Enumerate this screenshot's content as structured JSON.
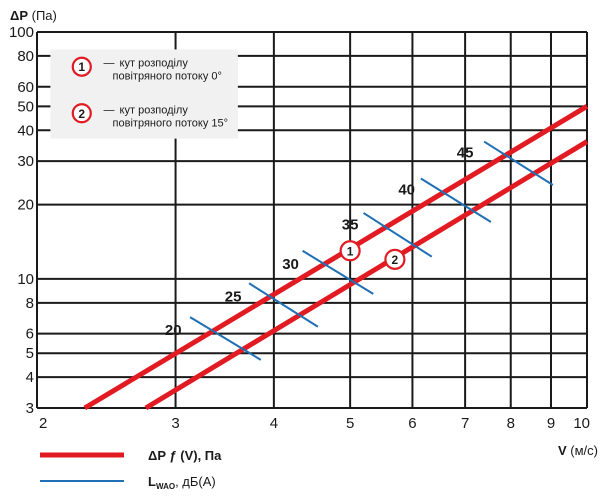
{
  "chart_data": {
    "type": "line",
    "xscale": "log",
    "yscale": "log",
    "xlabel_symbol": "V",
    "xlabel_unit": "(м/с)",
    "ylabel_symbol": "ΔP",
    "ylabel_unit": "(Па)",
    "xlim": [
      2,
      10
    ],
    "ylim": [
      3,
      100
    ],
    "x_ticks": [
      2,
      3,
      4,
      5,
      6,
      7,
      8,
      9,
      10
    ],
    "y_ticks": [
      3,
      4,
      5,
      6,
      8,
      10,
      20,
      30,
      40,
      50,
      60,
      80,
      100
    ],
    "grid": true,
    "series": [
      {
        "marker": "1",
        "x": [
          2.3,
          10
        ],
        "y": [
          3,
          50
        ],
        "marker_at": {
          "x": 5,
          "y": 13
        }
      },
      {
        "marker": "2",
        "x": [
          2.75,
          10
        ],
        "y": [
          3,
          36
        ],
        "marker_at": {
          "x": 5.7,
          "y": 12
        }
      }
    ],
    "iso_lines": [
      {
        "label": "20",
        "x1": 3.13,
        "y1": 7.0,
        "x2": 3.85,
        "y2": 4.7,
        "label_x": 2.98,
        "label_y": 6.2
      },
      {
        "label": "25",
        "x1": 3.72,
        "y1": 9.6,
        "x2": 4.55,
        "y2": 6.4,
        "label_x": 3.55,
        "label_y": 8.5
      },
      {
        "label": "30",
        "x1": 4.35,
        "y1": 13.0,
        "x2": 5.35,
        "y2": 8.7,
        "label_x": 4.2,
        "label_y": 11.5
      },
      {
        "label": "35",
        "x1": 5.2,
        "y1": 18.5,
        "x2": 6.35,
        "y2": 12.3,
        "label_x": 5.0,
        "label_y": 16.6
      },
      {
        "label": "40",
        "x1": 6.15,
        "y1": 25.5,
        "x2": 7.55,
        "y2": 17.0,
        "label_x": 5.9,
        "label_y": 23.0
      },
      {
        "label": "45",
        "x1": 7.4,
        "y1": 36.0,
        "x2": 9.05,
        "y2": 24.0,
        "label_x": 7.0,
        "label_y": 32.5
      }
    ],
    "annotations": [
      {
        "marker": "1",
        "dash": "—",
        "line1": "кут розподілу",
        "line2": "повітряного потоку 0°",
        "x": 2.43,
        "y": 71
      },
      {
        "marker": "2",
        "dash": "—",
        "line1": "кут розподілу",
        "line2": "повітряного потоку 15°",
        "x": 2.43,
        "y": 46
      }
    ],
    "legend": {
      "placement": "bottom-left",
      "items": [
        {
          "kind": "red-line",
          "label_main": "ΔP ƒ (V), Па"
        },
        {
          "kind": "blue-line",
          "label_main": "L",
          "label_sub": "WAO",
          "label_tail": ", дБ(А)"
        }
      ]
    },
    "colors": {
      "curve": "#e21b23",
      "iso": "#1f6fb5",
      "grid": "#1a1a1a",
      "annotation_bg": "#f1f1f1"
    }
  }
}
